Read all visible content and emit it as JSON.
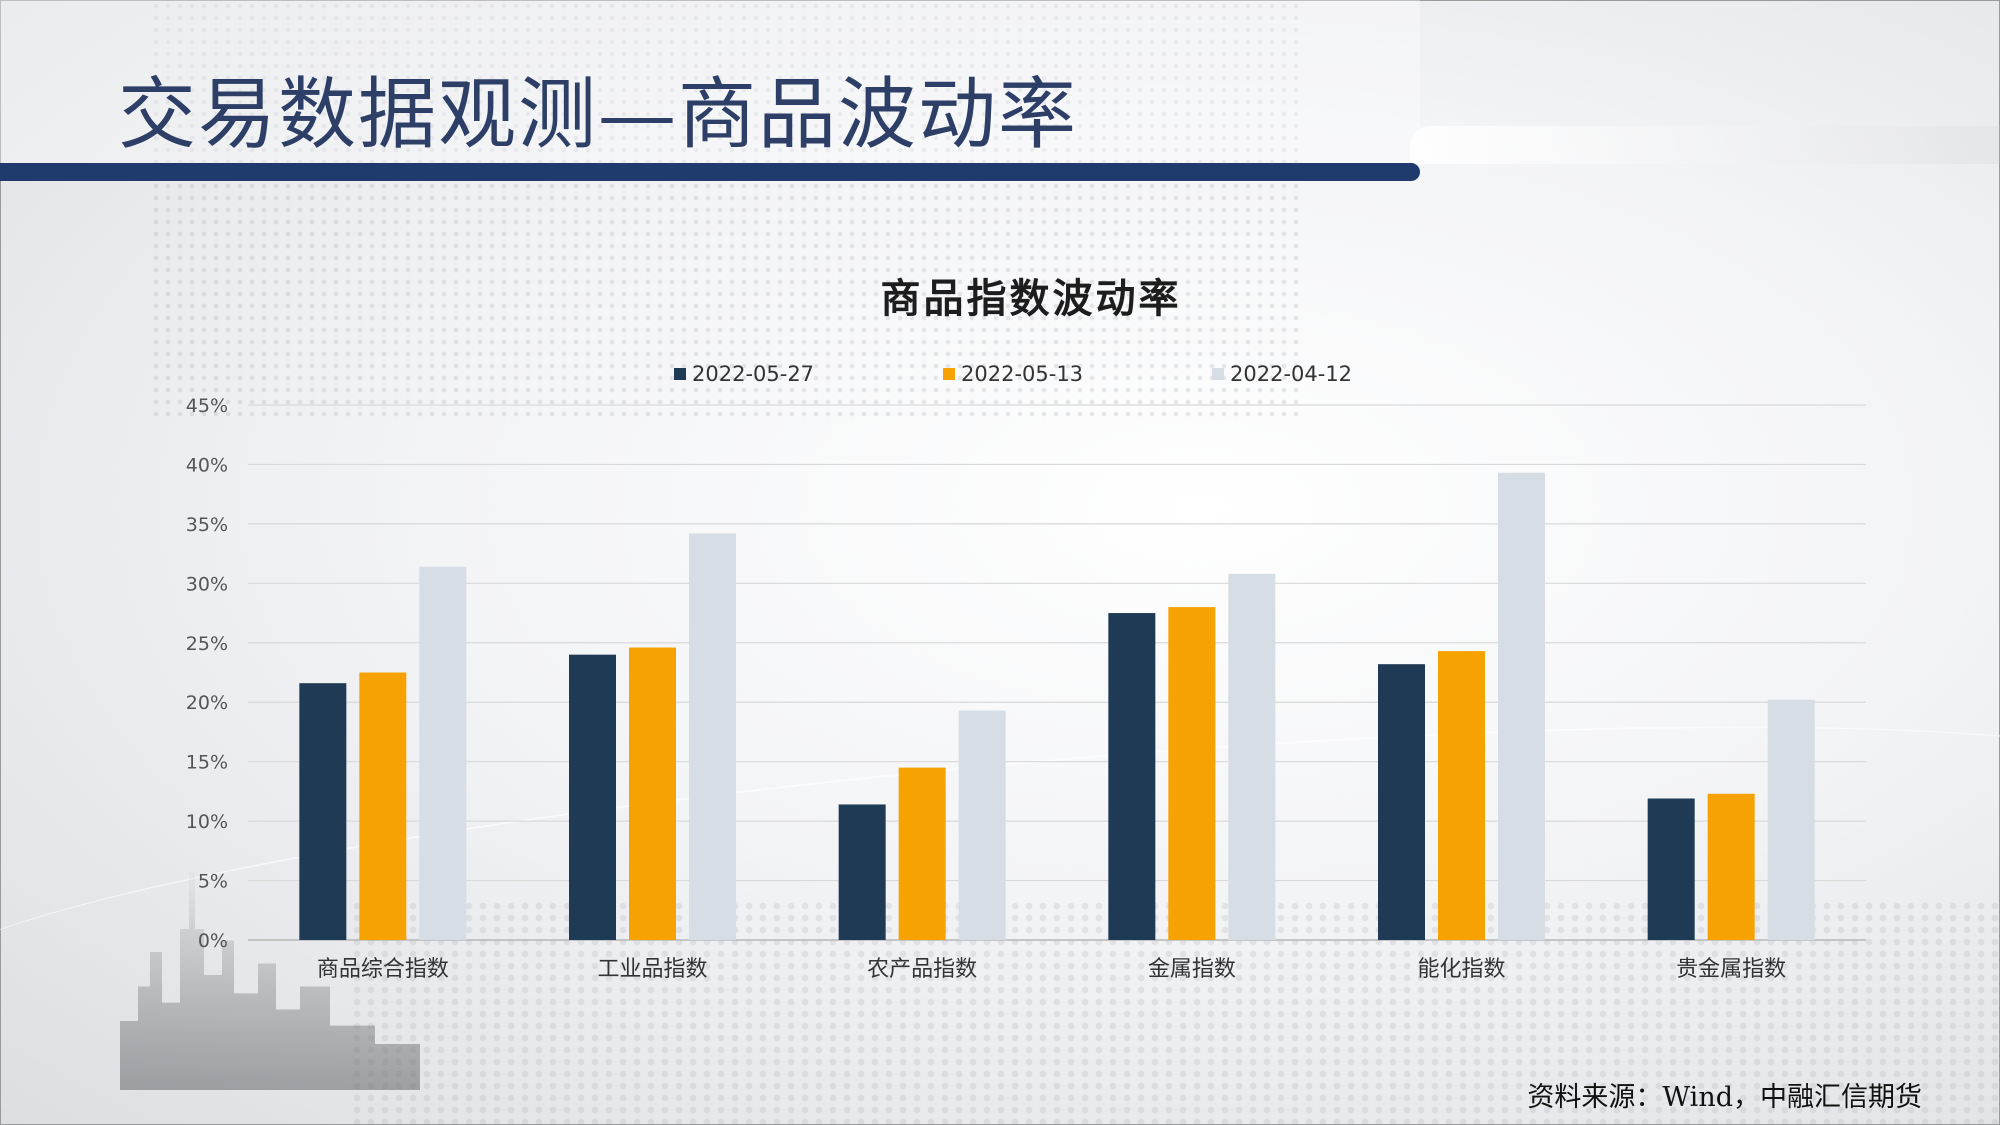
{
  "page": {
    "title": "交易数据观测—商品波动率",
    "source": "资料来源：Wind，中融汇信期货"
  },
  "colors": {
    "accent": "#1f3b6e",
    "series": [
      "#1f3a55",
      "#f5a202",
      "#d7dde5"
    ]
  },
  "chart_data": {
    "type": "bar",
    "title": "商品指数波动率",
    "xlabel": "",
    "ylabel": "",
    "categories": [
      "商品综合指数",
      "工业品指数",
      "农产品指数",
      "金属指数",
      "能化指数",
      "贵金属指数"
    ],
    "series": [
      {
        "name": "2022-05-27",
        "values": [
          21.6,
          24.0,
          11.4,
          27.5,
          23.2,
          11.9
        ]
      },
      {
        "name": "2022-05-13",
        "values": [
          22.5,
          24.6,
          14.5,
          28.0,
          24.3,
          12.3
        ]
      },
      {
        "name": "2022-04-12",
        "values": [
          31.4,
          34.2,
          19.3,
          30.8,
          39.3,
          20.2
        ]
      }
    ],
    "ylim": [
      0,
      45
    ],
    "yticks": [
      0,
      5,
      10,
      15,
      20,
      25,
      30,
      35,
      40,
      45
    ],
    "ytick_labels": [
      "0%",
      "5%",
      "10%",
      "15%",
      "20%",
      "25%",
      "30%",
      "35%",
      "40%",
      "45%"
    ],
    "grid": true,
    "legend_position": "top"
  }
}
